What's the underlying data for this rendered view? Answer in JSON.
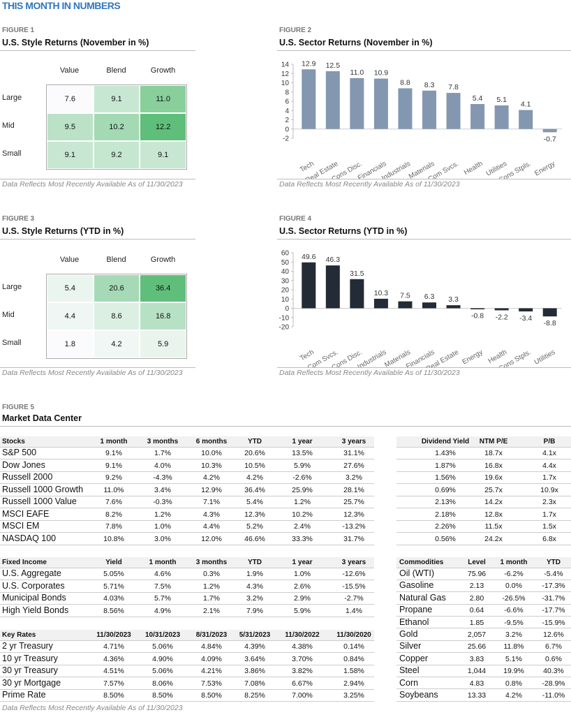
{
  "title": "THIS MONTH IN NUMBERS",
  "footnote": "Data Reflects Most Recently Available As of 11/30/2023",
  "colors": {
    "title": "#2f77bf",
    "heat_high": "#5fbf7a",
    "bar_nov": "#8497b0",
    "bar_ytd": "#232b36"
  },
  "figure1": {
    "label": "FIGURE 1",
    "title": "U.S. Style Returns (November in %)",
    "cols": [
      "Value",
      "Blend",
      "Growth"
    ],
    "rows": [
      "Large",
      "Mid",
      "Small"
    ],
    "values": [
      [
        7.6,
        9.1,
        11.0
      ],
      [
        9.5,
        10.2,
        12.2
      ],
      [
        9.1,
        9.2,
        9.1
      ]
    ]
  },
  "figure3": {
    "label": "FIGURE 3",
    "title": "U.S. Style Returns (YTD in %)",
    "cols": [
      "Value",
      "Blend",
      "Growth"
    ],
    "rows": [
      "Large",
      "Mid",
      "Small"
    ],
    "values": [
      [
        5.4,
        20.6,
        36.4
      ],
      [
        4.4,
        8.6,
        16.8
      ],
      [
        1.8,
        4.2,
        5.9
      ]
    ]
  },
  "figure2": {
    "label": "FIGURE 2",
    "title": "U.S. Sector Returns (November in %)"
  },
  "figure4": {
    "label": "FIGURE 4",
    "title": "U.S. Sector Returns (YTD in %)"
  },
  "chart_data": [
    {
      "type": "bar",
      "title": "U.S. Sector Returns (November in %)",
      "categories": [
        "Tech",
        "Real Estate",
        "Cons Disc.",
        "Financials",
        "Industrials",
        "Materials",
        "Com Svcs.",
        "Health",
        "Utilities",
        "Cons Stpls.",
        "Energy"
      ],
      "values": [
        12.9,
        12.5,
        11.0,
        10.9,
        8.8,
        8.3,
        7.8,
        5.4,
        5.1,
        4.1,
        -0.7
      ],
      "ylim": [
        -2,
        14
      ],
      "yticks": [
        -2,
        0,
        2,
        4,
        6,
        8,
        10,
        12,
        14
      ],
      "grid": false,
      "xlabel": "",
      "ylabel": ""
    },
    {
      "type": "bar",
      "title": "U.S. Sector Returns (YTD in %)",
      "categories": [
        "Tech",
        "Com Svcs.",
        "Cons Disc.",
        "Industrials",
        "Materials",
        "Financials",
        "Real Estate",
        "Energy",
        "Health",
        "Cons Stpls.",
        "Utilities"
      ],
      "values": [
        49.6,
        46.3,
        31.5,
        10.3,
        7.5,
        6.3,
        3.3,
        -0.8,
        -2.2,
        -3.4,
        -8.8
      ],
      "ylim": [
        -20,
        60
      ],
      "yticks": [
        -20,
        -10,
        0,
        10,
        20,
        30,
        40,
        50,
        60
      ],
      "grid": false,
      "xlabel": "",
      "ylabel": ""
    }
  ],
  "figure5": {
    "label": "FIGURE 5",
    "title": "Market Data Center"
  },
  "stocks": {
    "header": [
      "Stocks",
      "1 month",
      "3 months",
      "6 months",
      "YTD",
      "1 year",
      "3 years"
    ],
    "rows": [
      [
        "S&P 500",
        "9.1%",
        "1.7%",
        "10.0%",
        "20.6%",
        "13.5%",
        "31.1%"
      ],
      [
        "Dow Jones",
        "9.1%",
        "4.0%",
        "10.3%",
        "10.5%",
        "5.9%",
        "27.6%"
      ],
      [
        "Russell 2000",
        "9.2%",
        "-4.3%",
        "4.2%",
        "4.2%",
        "-2.6%",
        "3.2%"
      ],
      [
        "Russell 1000 Growth",
        "11.0%",
        "3.4%",
        "12.9%",
        "36.4%",
        "25.9%",
        "28.1%"
      ],
      [
        "Russell 1000 Value",
        "7.6%",
        "-0.3%",
        "7.1%",
        "5.4%",
        "1.2%",
        "25.7%"
      ],
      [
        "MSCI EAFE",
        "8.2%",
        "1.2%",
        "4.3%",
        "12.3%",
        "10.2%",
        "12.3%"
      ],
      [
        "MSCI EM",
        "7.8%",
        "1.0%",
        "4.4%",
        "5.2%",
        "2.4%",
        "-13.2%"
      ],
      [
        "NASDAQ 100",
        "10.8%",
        "3.0%",
        "12.0%",
        "46.6%",
        "33.3%",
        "31.7%"
      ]
    ]
  },
  "valuation": {
    "header": [
      "Dividend Yield",
      "NTM P/E",
      "P/B"
    ],
    "rows": [
      [
        "1.43%",
        "18.7x",
        "4.1x"
      ],
      [
        "1.87%",
        "16.8x",
        "4.4x"
      ],
      [
        "1.56%",
        "19.6x",
        "1.7x"
      ],
      [
        "0.69%",
        "25.7x",
        "10.9x"
      ],
      [
        "2.13%",
        "14.2x",
        "2.3x"
      ],
      [
        "2.18%",
        "12.8x",
        "1.7x"
      ],
      [
        "2.26%",
        "11.5x",
        "1.5x"
      ],
      [
        "0.56%",
        "24.2x",
        "6.8x"
      ]
    ]
  },
  "fixed_income": {
    "header": [
      "Fixed Income",
      "Yield",
      "1 month",
      "3 months",
      "YTD",
      "1 year",
      "3 years"
    ],
    "rows": [
      [
        "U.S. Aggregate",
        "5.05%",
        "4.6%",
        "0.3%",
        "1.9%",
        "1.0%",
        "-12.6%"
      ],
      [
        "U.S. Corporates",
        "5.71%",
        "7.5%",
        "1.2%",
        "4.3%",
        "2.6%",
        "-15.5%"
      ],
      [
        "Municipal Bonds",
        "4.03%",
        "5.7%",
        "1.7%",
        "3.2%",
        "2.9%",
        "-2.7%"
      ],
      [
        "High Yield Bonds",
        "8.56%",
        "4.9%",
        "2.1%",
        "7.9%",
        "5.9%",
        "1.4%"
      ]
    ]
  },
  "key_rates": {
    "header": [
      "Key Rates",
      "11/30/2023",
      "10/31/2023",
      "8/31/2023",
      "5/31/2023",
      "11/30/2022",
      "11/30/2020"
    ],
    "rows": [
      [
        "2 yr Treasury",
        "4.71%",
        "5.06%",
        "4.84%",
        "4.39%",
        "4.38%",
        "0.14%"
      ],
      [
        "10 yr Treasury",
        "4.36%",
        "4.90%",
        "4.09%",
        "3.64%",
        "3.70%",
        "0.84%"
      ],
      [
        "30 yr Treasury",
        "4.51%",
        "5.06%",
        "4.21%",
        "3.86%",
        "3.82%",
        "1.58%"
      ],
      [
        "30 yr Mortgage",
        "7.57%",
        "8.06%",
        "7.53%",
        "7.08%",
        "6.67%",
        "2.94%"
      ],
      [
        "Prime Rate",
        "8.50%",
        "8.50%",
        "8.50%",
        "8.25%",
        "7.00%",
        "3.25%"
      ]
    ]
  },
  "commodities": {
    "header": [
      "Commodities",
      "Level",
      "1 month",
      "YTD"
    ],
    "rows": [
      [
        "Oil (WTI)",
        "75.96",
        "-6.2%",
        "-5.4%"
      ],
      [
        "Gasoline",
        "2.13",
        "0.0%",
        "-17.3%"
      ],
      [
        "Natural Gas",
        "2.80",
        "-26.5%",
        "-31.7%"
      ],
      [
        "Propane",
        "0.64",
        "-6.6%",
        "-17.7%"
      ],
      [
        "Ethanol",
        "1.85",
        "-9.5%",
        "-15.9%"
      ],
      [
        "Gold",
        "2,057",
        "3.2%",
        "12.6%"
      ],
      [
        "Silver",
        "25.66",
        "11.8%",
        "6.7%"
      ],
      [
        "Copper",
        "3.83",
        "5.1%",
        "0.6%"
      ],
      [
        "Steel",
        "1,044",
        "19.9%",
        "40.3%"
      ],
      [
        "Corn",
        "4.83",
        "0.8%",
        "-28.9%"
      ],
      [
        "Soybeans",
        "13.33",
        "4.2%",
        "-11.0%"
      ]
    ]
  }
}
